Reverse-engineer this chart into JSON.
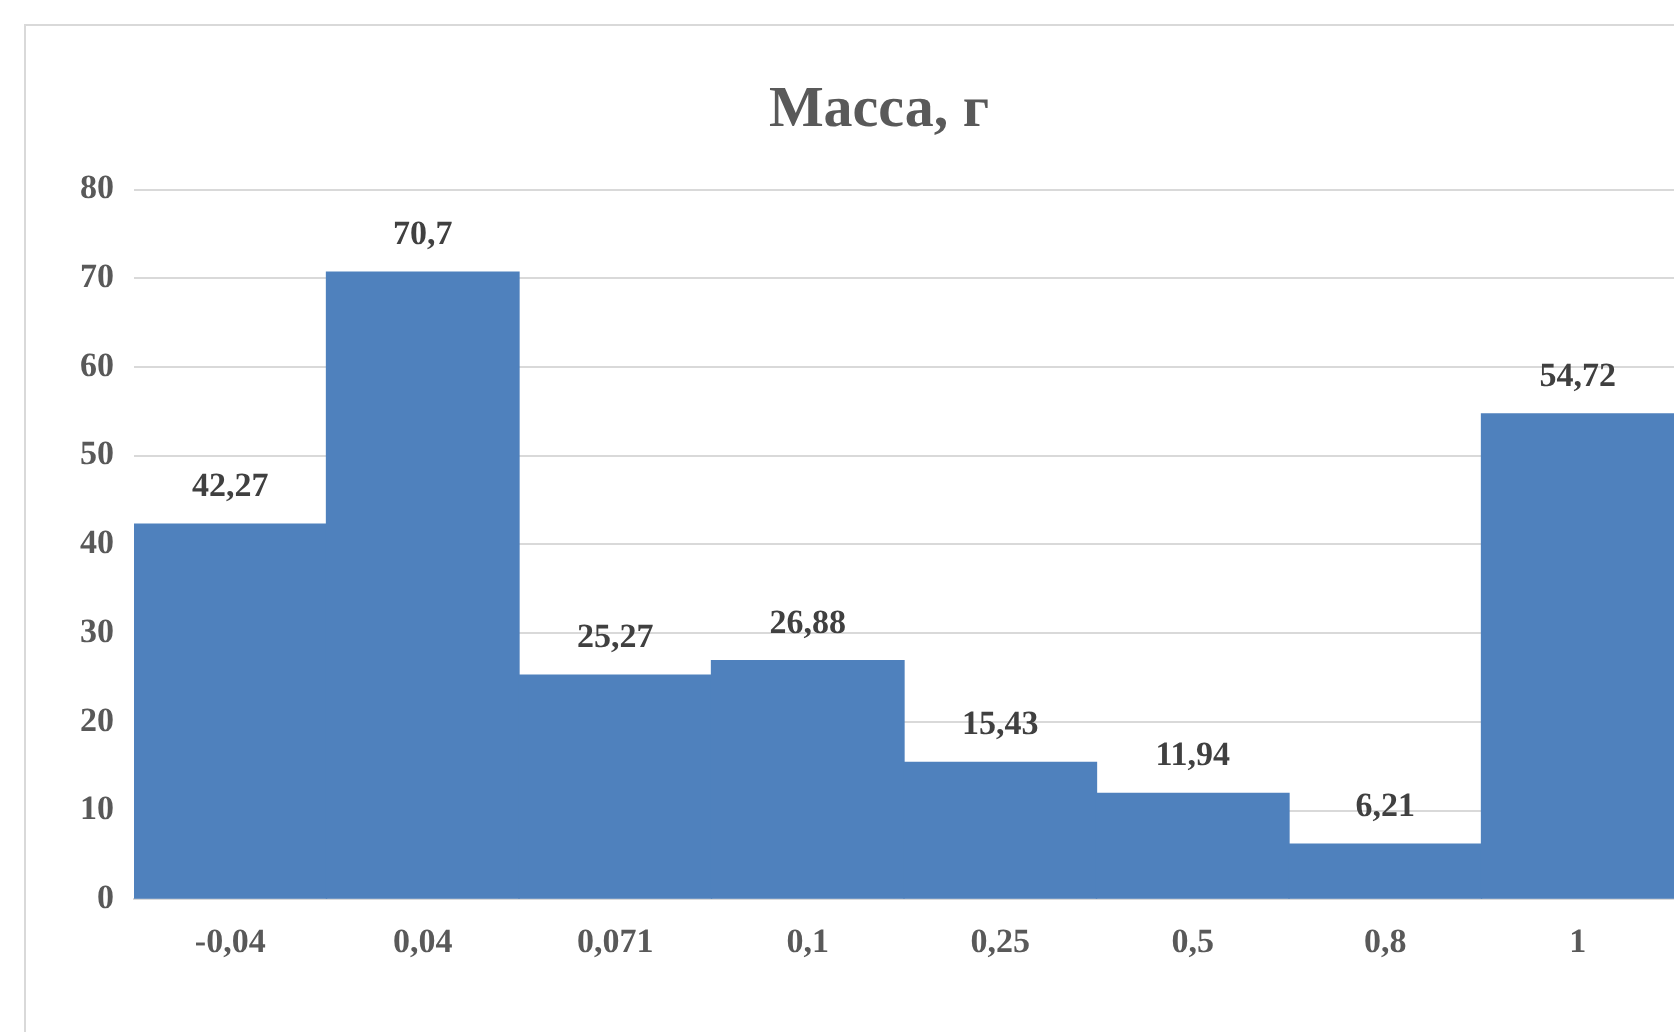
{
  "chart_data": {
    "type": "bar",
    "title": "Масса, г",
    "categories": [
      "-0,04",
      "0,04",
      "0,071",
      "0,1",
      "0,25",
      "0,5",
      "0,8",
      "1"
    ],
    "values": [
      42.27,
      70.7,
      25.27,
      26.88,
      15.43,
      11.94,
      6.21,
      54.72
    ],
    "value_labels": [
      "42,27",
      "70,7",
      "25,27",
      "26,88",
      "15,43",
      "11,94",
      "6,21",
      "54,72"
    ],
    "color": "#4f81bd",
    "ylim": [
      0,
      80
    ],
    "yticks": [
      0,
      10,
      20,
      30,
      40,
      50,
      60,
      70,
      80
    ],
    "grid": "y",
    "legend": false
  }
}
